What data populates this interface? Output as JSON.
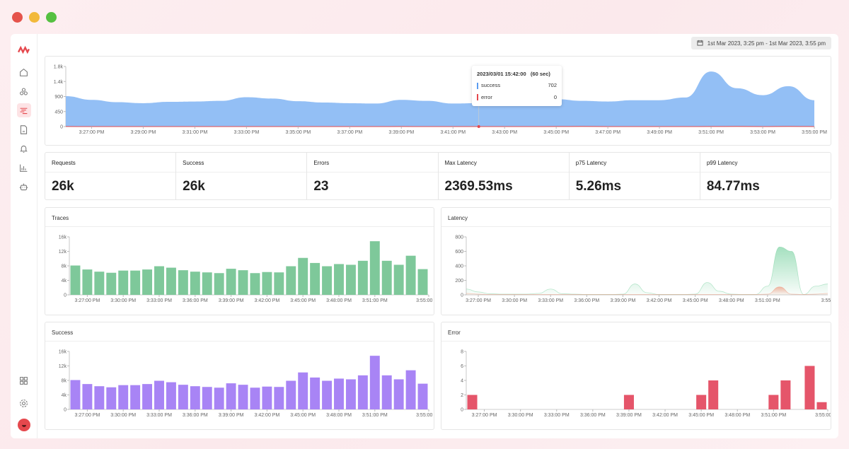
{
  "window_controls": {
    "close": "#e5534b",
    "minimize": "#f2b93b",
    "maximize": "#55c041"
  },
  "sidebar": {
    "items": [
      {
        "icon": "logo-icon"
      },
      {
        "icon": "home-icon"
      },
      {
        "icon": "services-icon"
      },
      {
        "icon": "traces-icon",
        "active": true
      },
      {
        "icon": "logs-icon"
      },
      {
        "icon": "alerts-icon"
      },
      {
        "icon": "dashboards-icon"
      },
      {
        "icon": "bot-icon"
      }
    ],
    "bottom": [
      {
        "icon": "apps-icon"
      },
      {
        "icon": "settings-icon"
      },
      {
        "icon": "avatar"
      }
    ]
  },
  "date_range": "1st Mar 2023, 3:25 pm - 1st Mar 2023, 3:55 pm",
  "tooltip": {
    "title": "2023/03/01 15:42:00",
    "interval": "(60 sec)",
    "rows": [
      {
        "label": "success",
        "value": "702",
        "color": "#5b9cf0"
      },
      {
        "label": "error",
        "value": "0",
        "color": "#e5484d"
      }
    ]
  },
  "stats": [
    {
      "label": "Requests",
      "value": "26k"
    },
    {
      "label": "Success",
      "value": "26k"
    },
    {
      "label": "Errors",
      "value": "23"
    },
    {
      "label": "Max Latency",
      "value": "2369.53ms"
    },
    {
      "label": "p75 Latency",
      "value": "5.26ms"
    },
    {
      "label": "p99 Latency",
      "value": "84.77ms"
    }
  ],
  "chart_data": [
    {
      "type": "area",
      "title": "",
      "y_ticks": [
        "0",
        "450",
        "900",
        "1.4k",
        "1.8k"
      ],
      "ylim": [
        0,
        1800
      ],
      "x_ticks": [
        "3:27:00 PM",
        "3:29:00 PM",
        "3:31:00 PM",
        "3:33:00 PM",
        "3:35:00 PM",
        "3:37:00 PM",
        "3:39:00 PM",
        "3:41:00 PM",
        "3:43:00 PM",
        "3:45:00 PM",
        "3:47:00 PM",
        "3:49:00 PM",
        "3:51:00 PM",
        "3:53:00 PM",
        "3:55:00 PM"
      ],
      "x": [
        "3:26",
        "3:27",
        "3:28",
        "3:29",
        "3:30",
        "3:31",
        "3:32",
        "3:33",
        "3:34",
        "3:35",
        "3:36",
        "3:37",
        "3:38",
        "3:39",
        "3:40",
        "3:41",
        "3:42",
        "3:43",
        "3:44",
        "3:45",
        "3:46",
        "3:47",
        "3:48",
        "3:49",
        "3:50",
        "3:51",
        "3:52",
        "3:53",
        "3:54",
        "3:55"
      ],
      "series": [
        {
          "name": "success",
          "color": "#93bff5",
          "values": [
            910,
            800,
            730,
            700,
            740,
            750,
            770,
            880,
            840,
            760,
            720,
            700,
            690,
            800,
            770,
            690,
            702,
            760,
            850,
            820,
            770,
            750,
            790,
            790,
            870,
            1650,
            1150,
            940,
            1210,
            790
          ]
        },
        {
          "name": "error",
          "color": "#e5484d",
          "values": [
            2,
            0,
            0,
            0,
            0,
            0,
            0,
            0,
            0,
            0,
            0,
            0,
            0,
            2,
            0,
            0,
            0,
            0,
            0,
            2,
            4,
            0,
            0,
            0,
            0,
            2,
            4,
            0,
            6,
            1
          ]
        }
      ]
    },
    {
      "type": "bar",
      "title": "Traces",
      "color": "#7ec89a",
      "y_ticks": [
        "0",
        "4k",
        "8k",
        "12k",
        "16k"
      ],
      "ylim": [
        0,
        16000
      ],
      "x_ticks": [
        "3:27:00 PM",
        "3:30:00 PM",
        "3:33:00 PM",
        "3:36:00 PM",
        "3:39:00 PM",
        "3:42:00 PM",
        "3:45:00 PM",
        "3:48:00 PM",
        "3:51:00 PM",
        "3:55:00 PM"
      ],
      "values": [
        8100,
        7000,
        6400,
        6100,
        6700,
        6700,
        7000,
        7900,
        7500,
        6800,
        6400,
        6200,
        6000,
        7200,
        6800,
        6000,
        6300,
        6200,
        7900,
        10200,
        8800,
        7900,
        8500,
        8300,
        9400,
        14800,
        9400,
        8300,
        10800,
        7100
      ]
    },
    {
      "type": "area",
      "title": "Latency",
      "y_ticks": [
        "0",
        "200",
        "400",
        "600",
        "800"
      ],
      "ylim": [
        0,
        800
      ],
      "x_ticks": [
        "3:27:00 PM",
        "3:30:00 PM",
        "3:33:00 PM",
        "3:36:00 PM",
        "3:39:00 PM",
        "3:42:00 PM",
        "3:45:00 PM",
        "3:48:00 PM",
        "3:51:00 PM",
        "3:55:00 PM"
      ],
      "series": [
        {
          "color": "#7ed3a4",
          "values": [
            80,
            40,
            15,
            10,
            10,
            10,
            20,
            80,
            15,
            10,
            5,
            5,
            5,
            10,
            150,
            30,
            5,
            5,
            5,
            10,
            170,
            50,
            10,
            5,
            5,
            120,
            660,
            600,
            5,
            120,
            150
          ]
        },
        {
          "color": "#f09a80",
          "values": [
            20,
            10,
            5,
            5,
            5,
            5,
            5,
            5,
            5,
            5,
            5,
            5,
            5,
            5,
            5,
            5,
            5,
            5,
            5,
            5,
            5,
            5,
            5,
            5,
            5,
            10,
            110,
            10,
            5,
            10,
            20
          ]
        }
      ]
    },
    {
      "type": "bar",
      "title": "Success",
      "color": "#a884f5",
      "y_ticks": [
        "0",
        "4k",
        "8k",
        "12k",
        "16k"
      ],
      "ylim": [
        0,
        16000
      ],
      "x_ticks": [
        "3:27:00 PM",
        "3:30:00 PM",
        "3:33:00 PM",
        "3:36:00 PM",
        "3:39:00 PM",
        "3:42:00 PM",
        "3:45:00 PM",
        "3:48:00 PM",
        "3:51:00 PM",
        "3:55:00 PM"
      ],
      "values": [
        8100,
        7000,
        6400,
        6100,
        6700,
        6700,
        7000,
        7900,
        7500,
        6800,
        6400,
        6200,
        6000,
        7200,
        6800,
        6000,
        6300,
        6200,
        7900,
        10200,
        8800,
        7900,
        8500,
        8300,
        9400,
        14800,
        9400,
        8300,
        10800,
        7100
      ]
    },
    {
      "type": "bar",
      "title": "Error",
      "color": "#e5556a",
      "y_ticks": [
        "0",
        "2",
        "4",
        "6",
        "8"
      ],
      "ylim": [
        0,
        8
      ],
      "x_ticks": [
        "3:27:00 PM",
        "3:30:00 PM",
        "3:33:00 PM",
        "3:36:00 PM",
        "3:39:00 PM",
        "3:42:00 PM",
        "3:45:00 PM",
        "3:48:00 PM",
        "3:51:00 PM",
        "3:55:00 PM"
      ],
      "values": [
        2,
        0,
        0,
        0,
        0,
        0,
        0,
        0,
        0,
        0,
        0,
        0,
        0,
        2,
        0,
        0,
        0,
        0,
        0,
        2,
        4,
        0,
        0,
        0,
        0,
        2,
        4,
        0,
        6,
        1
      ]
    }
  ]
}
